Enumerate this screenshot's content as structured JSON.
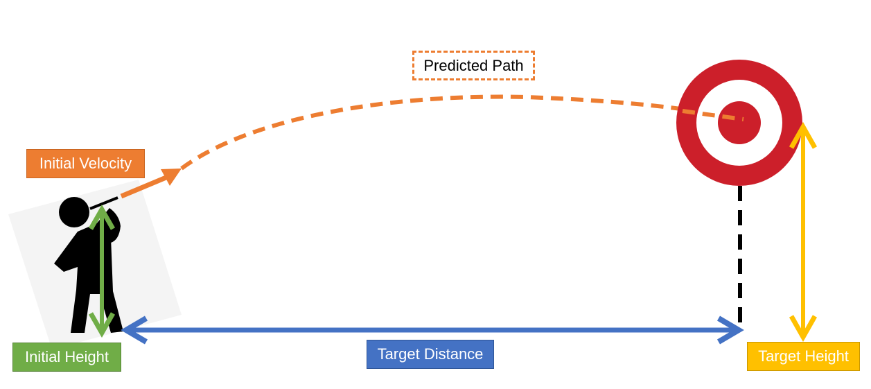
{
  "labels": {
    "initial_velocity": "Initial Velocity",
    "predicted_path": "Predicted Path",
    "initial_height": "Initial Height",
    "target_distance": "Target Distance",
    "target_height": "Target Height"
  },
  "colors": {
    "velocity": "#ED7D31",
    "path": "#ED7D31",
    "initial_height": "#70AD47",
    "target_distance": "#4472C4",
    "target_height": "#FFC000",
    "target_red": "#CC1F2A",
    "figure": "#000000"
  },
  "icons": {
    "thrower": "person-throwing-dart-icon",
    "target": "bullseye-target-icon"
  }
}
